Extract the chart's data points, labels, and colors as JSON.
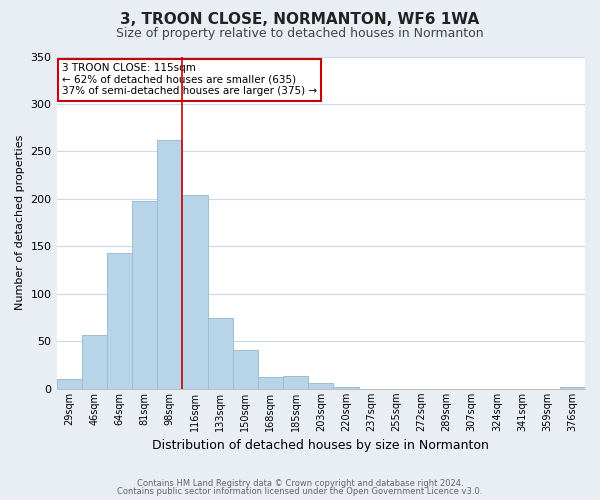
{
  "title": "3, TROON CLOSE, NORMANTON, WF6 1WA",
  "subtitle": "Size of property relative to detached houses in Normanton",
  "xlabel": "Distribution of detached houses by size in Normanton",
  "ylabel": "Number of detached properties",
  "footer_line1": "Contains HM Land Registry data © Crown copyright and database right 2024.",
  "footer_line2": "Contains public sector information licensed under the Open Government Licence v3.0.",
  "bin_labels": [
    "29sqm",
    "46sqm",
    "64sqm",
    "81sqm",
    "98sqm",
    "116sqm",
    "133sqm",
    "150sqm",
    "168sqm",
    "185sqm",
    "203sqm",
    "220sqm",
    "237sqm",
    "255sqm",
    "272sqm",
    "289sqm",
    "307sqm",
    "324sqm",
    "341sqm",
    "359sqm",
    "376sqm"
  ],
  "bar_values": [
    10,
    57,
    143,
    198,
    262,
    204,
    75,
    41,
    13,
    14,
    6,
    2,
    0,
    0,
    0,
    0,
    0,
    0,
    0,
    0,
    2
  ],
  "bar_color": "#b8d4e8",
  "bar_edgecolor": "#a0bcd4",
  "vline_x_index": 5,
  "vline_color": "#cc0000",
  "annotation_title": "3 TROON CLOSE: 115sqm",
  "annotation_line1": "← 62% of detached houses are smaller (635)",
  "annotation_line2": "37% of semi-detached houses are larger (375) →",
  "annotation_box_facecolor": "#ffffff",
  "annotation_box_edgecolor": "#cc0000",
  "ylim": [
    0,
    350
  ],
  "yticks": [
    0,
    50,
    100,
    150,
    200,
    250,
    300,
    350
  ],
  "background_color": "#e8eef4",
  "plot_background_color": "#ffffff",
  "grid_color": "#c8d8e8",
  "title_fontsize": 11,
  "subtitle_fontsize": 9,
  "ylabel_fontsize": 8,
  "xlabel_fontsize": 9
}
